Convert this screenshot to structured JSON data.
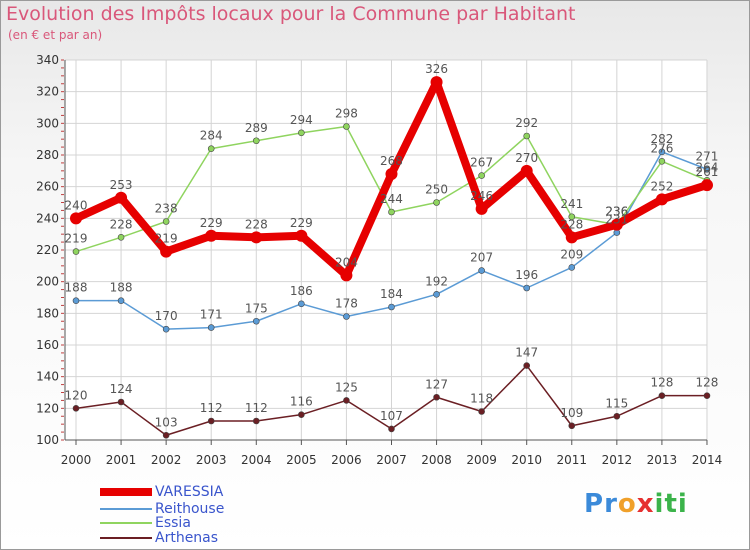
{
  "title": "Evolution des Impôts locaux pour la Commune par Habitant",
  "subtitle": "(en € et par an)",
  "colors": {
    "varessia": "#e60000",
    "reithouse": "#5b9bd5",
    "essia": "#8fd45f",
    "arthenas": "#6b1f24",
    "grid": "#d4d4d4",
    "axis_text": "#333333",
    "label_text": "#555555"
  },
  "logo": {
    "letters": [
      "P",
      "r",
      "o",
      "x",
      "i",
      "t",
      "i"
    ],
    "colors": [
      "#3b8ad9",
      "#3b8ad9",
      "#f0a02a",
      "#e63030",
      "#3bb34a",
      "#3bb34a",
      "#3bb34a"
    ]
  },
  "chart_data": {
    "type": "line",
    "title": "Evolution des Impôts locaux pour la Commune par Habitant",
    "subtitle": "(en € et par an)",
    "x": [
      "2000",
      "2001",
      "2002",
      "2003",
      "2004",
      "2005",
      "2006",
      "2007",
      "2008",
      "2009",
      "2010",
      "2011",
      "2012",
      "2013",
      "2014"
    ],
    "ylim": [
      100,
      340
    ],
    "yticks": [
      100,
      120,
      140,
      160,
      180,
      200,
      220,
      240,
      260,
      280,
      300,
      320,
      340
    ],
    "grid": true,
    "legend_position": "bottom-left",
    "series": [
      {
        "name": "VARESSIA",
        "key": "varessia",
        "values": [
          240,
          253,
          219,
          229,
          228,
          229,
          204,
          268,
          326,
          246,
          270,
          228,
          236,
          252,
          261
        ],
        "labels": [
          "240",
          "253",
          "219",
          "229",
          "228",
          "229",
          "204",
          "268",
          "326",
          "246",
          "270",
          "228",
          "236",
          "252",
          "261"
        ]
      },
      {
        "name": "Reithouse",
        "key": "reithouse",
        "values": [
          188,
          188,
          170,
          171,
          175,
          186,
          178,
          184,
          192,
          207,
          196,
          209,
          231,
          282,
          271
        ],
        "labels": [
          "188",
          "188",
          "170",
          "171",
          "175",
          "186",
          "178",
          "184",
          "192",
          "207",
          "196",
          "209",
          "231",
          "282",
          "271"
        ]
      },
      {
        "name": "Essia",
        "key": "essia",
        "values": [
          219,
          228,
          238,
          284,
          289,
          294,
          298,
          244,
          250,
          267,
          292,
          241,
          236,
          276,
          264
        ],
        "labels": [
          "219",
          "228",
          "238",
          "284",
          "289",
          "294",
          "298",
          "244",
          "250",
          "267",
          "292",
          "241",
          "236",
          "276",
          "264"
        ]
      },
      {
        "name": "Arthenas",
        "key": "arthenas",
        "values": [
          120,
          124,
          103,
          112,
          112,
          116,
          125,
          107,
          127,
          118,
          147,
          109,
          115,
          128,
          128
        ],
        "labels": [
          "120",
          "124",
          "103",
          "112",
          "112",
          "116",
          "125",
          "107",
          "127",
          "118",
          "147",
          "109",
          "115",
          "128",
          "128"
        ]
      }
    ]
  }
}
